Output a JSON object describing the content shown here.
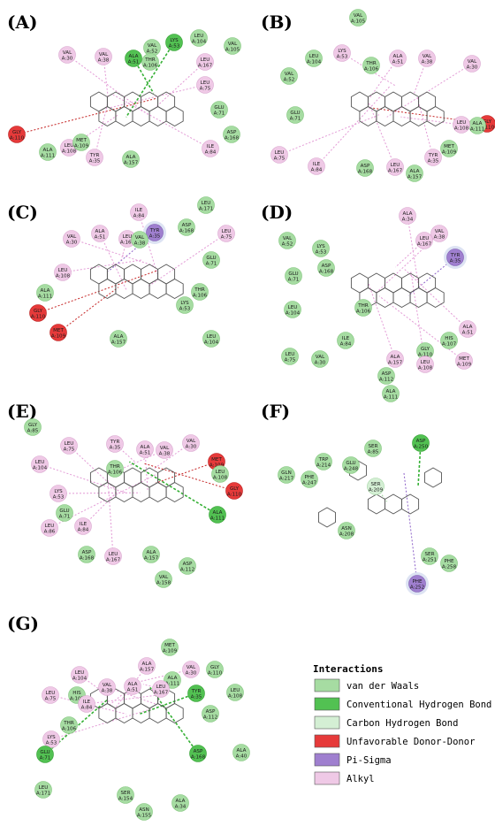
{
  "colors": {
    "vdw": "#a6dca2",
    "hbond": "#52c152",
    "chbond": "#d4efd4",
    "unfavorable": "#e63a3a",
    "pisigma": "#9f7fcf",
    "alkyl": "#efc9e6"
  },
  "panels": [
    {
      "label": "(A)",
      "residues": [
        {
          "name": "VAL",
          "num": "A:52",
          "t": "vdw"
        },
        {
          "name": "LEU",
          "num": "A:104",
          "t": "vdw"
        },
        {
          "name": "VAL",
          "num": "A:105",
          "t": "vdw"
        },
        {
          "name": "VAL",
          "num": "A:30",
          "t": "alkyl"
        },
        {
          "name": "VAL",
          "num": "A:38",
          "t": "alkyl"
        },
        {
          "name": "ALA",
          "num": "A:51",
          "t": "hbond"
        },
        {
          "name": "LYS",
          "num": "A:53",
          "t": "hbond"
        },
        {
          "name": "THR",
          "num": "A:106",
          "t": "vdw"
        },
        {
          "name": "LEU",
          "num": "A:167",
          "t": "alkyl"
        },
        {
          "name": "LEU",
          "num": "A:75",
          "t": "alkyl"
        },
        {
          "name": "GLU",
          "num": "A:71",
          "t": "vdw"
        },
        {
          "name": "ASP",
          "num": "A:168",
          "t": "vdw"
        },
        {
          "name": "ILE",
          "num": "A:84",
          "t": "alkyl"
        },
        {
          "name": "GLY",
          "num": "A:110",
          "t": "unfavorable"
        },
        {
          "name": "LEU",
          "num": "A:108",
          "t": "alkyl"
        },
        {
          "name": "MET",
          "num": "A:109",
          "t": "vdw"
        },
        {
          "name": "ALA",
          "num": "A:111",
          "t": "vdw"
        },
        {
          "name": "TYR",
          "num": "A:35",
          "t": "alkyl"
        },
        {
          "name": "ALA",
          "num": "A:157",
          "t": "vdw"
        }
      ]
    },
    {
      "label": "(B)",
      "residues": [
        {
          "name": "VAL",
          "num": "A:105",
          "t": "vdw"
        },
        {
          "name": "LEU",
          "num": "A:104",
          "t": "vdw"
        },
        {
          "name": "LYS",
          "num": "A:53",
          "t": "alkyl"
        },
        {
          "name": "THR",
          "num": "A:106",
          "t": "vdw"
        },
        {
          "name": "ALA",
          "num": "A:51",
          "t": "alkyl"
        },
        {
          "name": "VAL",
          "num": "A:38",
          "t": "alkyl"
        },
        {
          "name": "VAL",
          "num": "A:30",
          "t": "alkyl"
        },
        {
          "name": "VAL",
          "num": "A:52",
          "t": "vdw"
        },
        {
          "name": "GLU",
          "num": "A:71",
          "t": "vdw"
        },
        {
          "name": "GLY",
          "num": "A:110",
          "t": "unfavorable"
        },
        {
          "name": "ALA",
          "num": "A:111",
          "t": "vdw"
        },
        {
          "name": "LEU",
          "num": "A:108",
          "t": "alkyl"
        },
        {
          "name": "MET",
          "num": "A:109",
          "t": "vdw"
        },
        {
          "name": "TYR",
          "num": "A:35",
          "t": "alkyl"
        },
        {
          "name": "LEU",
          "num": "A:75",
          "t": "alkyl"
        },
        {
          "name": "ILE",
          "num": "A:84",
          "t": "alkyl"
        },
        {
          "name": "ASP",
          "num": "A:168",
          "t": "vdw"
        },
        {
          "name": "LEU",
          "num": "A:167",
          "t": "alkyl"
        },
        {
          "name": "ALA",
          "num": "A:157",
          "t": "vdw"
        }
      ]
    },
    {
      "label": "(C)",
      "residues": [
        {
          "name": "ILE",
          "num": "A:84",
          "t": "alkyl"
        },
        {
          "name": "LEU",
          "num": "A:171",
          "t": "vdw"
        },
        {
          "name": "ASP",
          "num": "A:168",
          "t": "vdw"
        },
        {
          "name": "LEU",
          "num": "A:75",
          "t": "alkyl"
        },
        {
          "name": "TYR",
          "num": "A:35",
          "t": "pisigma"
        },
        {
          "name": "VAL",
          "num": "A:30",
          "t": "alkyl"
        },
        {
          "name": "ALA",
          "num": "A:51",
          "t": "alkyl"
        },
        {
          "name": "LEU",
          "num": "A:167",
          "t": "alkyl"
        },
        {
          "name": "VAL",
          "num": "A:38",
          "t": "vdw"
        },
        {
          "name": "GLU",
          "num": "A:71",
          "t": "vdw"
        },
        {
          "name": "LEU",
          "num": "A:108",
          "t": "alkyl"
        },
        {
          "name": "THR",
          "num": "A:106",
          "t": "vdw"
        },
        {
          "name": "ALA",
          "num": "A:111",
          "t": "vdw"
        },
        {
          "name": "GLY",
          "num": "A:110",
          "t": "unfavorable"
        },
        {
          "name": "MET",
          "num": "A:109",
          "t": "unfavorable"
        },
        {
          "name": "LYS",
          "num": "A:53",
          "t": "vdw"
        },
        {
          "name": "ALA",
          "num": "A:157",
          "t": "vdw"
        },
        {
          "name": "LEU",
          "num": "A:104",
          "t": "vdw"
        }
      ]
    },
    {
      "label": "(D)",
      "residues": [
        {
          "name": "ALA",
          "num": "A:34",
          "t": "alkyl"
        },
        {
          "name": "VAL",
          "num": "A:38",
          "t": "alkyl"
        },
        {
          "name": "LEU",
          "num": "A:167",
          "t": "alkyl"
        },
        {
          "name": "TYR",
          "num": "A:35",
          "t": "pisigma"
        },
        {
          "name": "VAL",
          "num": "A:52",
          "t": "vdw"
        },
        {
          "name": "LYS",
          "num": "A:53",
          "t": "vdw"
        },
        {
          "name": "ASP",
          "num": "A:168",
          "t": "vdw"
        },
        {
          "name": "GLU",
          "num": "A:71",
          "t": "vdw"
        },
        {
          "name": "THR",
          "num": "A:106",
          "t": "vdw"
        },
        {
          "name": "LEU",
          "num": "A:104",
          "t": "vdw"
        },
        {
          "name": "ALA",
          "num": "A:51",
          "t": "alkyl"
        },
        {
          "name": "HIS",
          "num": "A:107",
          "t": "vdw"
        },
        {
          "name": "ILE",
          "num": "A:84",
          "t": "vdw"
        },
        {
          "name": "GLY",
          "num": "A:110",
          "t": "vdw"
        },
        {
          "name": "MET",
          "num": "A:109",
          "t": "alkyl"
        },
        {
          "name": "LEU",
          "num": "A:75",
          "t": "vdw"
        },
        {
          "name": "VAL",
          "num": "A:30",
          "t": "vdw"
        },
        {
          "name": "ALA",
          "num": "A:157",
          "t": "alkyl"
        },
        {
          "name": "LEU",
          "num": "A:108",
          "t": "alkyl"
        },
        {
          "name": "ASP",
          "num": "A:112",
          "t": "vdw"
        },
        {
          "name": "ALA",
          "num": "A:111",
          "t": "vdw"
        }
      ]
    },
    {
      "label": "(E)",
      "residues": [
        {
          "name": "GLY",
          "num": "A:85",
          "t": "vdw"
        },
        {
          "name": "LEU",
          "num": "A:75",
          "t": "alkyl"
        },
        {
          "name": "TYR",
          "num": "A:35",
          "t": "alkyl"
        },
        {
          "name": "ALA",
          "num": "A:51",
          "t": "alkyl"
        },
        {
          "name": "VAL",
          "num": "A:38",
          "t": "alkyl"
        },
        {
          "name": "VAL",
          "num": "A:30",
          "t": "alkyl"
        },
        {
          "name": "LEU",
          "num": "A:104",
          "t": "alkyl"
        },
        {
          "name": "THR",
          "num": "A:106",
          "t": "vdw"
        },
        {
          "name": "MET",
          "num": "A:109",
          "t": "unfavorable"
        },
        {
          "name": "LEU",
          "num": "A:108",
          "t": "vdw"
        },
        {
          "name": "GLY",
          "num": "A:110",
          "t": "unfavorable"
        },
        {
          "name": "LYS",
          "num": "A:53",
          "t": "alkyl"
        },
        {
          "name": "GLU",
          "num": "A:71",
          "t": "vdw"
        },
        {
          "name": "LEU",
          "num": "A:86",
          "t": "alkyl"
        },
        {
          "name": "ILE",
          "num": "A:84",
          "t": "alkyl"
        },
        {
          "name": "ALA",
          "num": "A:111",
          "t": "hbond"
        },
        {
          "name": "ASP",
          "num": "A:168",
          "t": "vdw"
        },
        {
          "name": "LEU",
          "num": "A:167",
          "t": "alkyl"
        },
        {
          "name": "ALA",
          "num": "A:157",
          "t": "vdw"
        },
        {
          "name": "ASP",
          "num": "A:112",
          "t": "vdw"
        },
        {
          "name": "VAL",
          "num": "A:158",
          "t": "vdw"
        }
      ]
    },
    {
      "label": "(F)",
      "residues": [
        {
          "name": "ASP",
          "num": "A:250",
          "t": "hbond"
        },
        {
          "name": "SER",
          "num": "A:85",
          "t": "vdw"
        },
        {
          "name": "TRP",
          "num": "A:214",
          "t": "vdw"
        },
        {
          "name": "GLU",
          "num": "A:248",
          "t": "vdw"
        },
        {
          "name": "GLN",
          "num": "A:217",
          "t": "vdw"
        },
        {
          "name": "PHE",
          "num": "A:247",
          "t": "vdw"
        },
        {
          "name": "SER",
          "num": "A:209",
          "t": "chbond"
        },
        {
          "name": "ASN",
          "num": "A:208",
          "t": "vdw"
        },
        {
          "name": "SER",
          "num": "A:251",
          "t": "vdw"
        },
        {
          "name": "PHE",
          "num": "A:258",
          "t": "vdw"
        },
        {
          "name": "PHE",
          "num": "A:252",
          "t": "pisigma"
        }
      ]
    },
    {
      "label": "(G)",
      "residues": [
        {
          "name": "MET",
          "num": "A:109",
          "t": "vdw"
        },
        {
          "name": "ALA",
          "num": "A:157",
          "t": "alkyl"
        },
        {
          "name": "VAL",
          "num": "A:30",
          "t": "alkyl"
        },
        {
          "name": "GLY",
          "num": "A:110",
          "t": "vdw"
        },
        {
          "name": "LEU",
          "num": "A:104",
          "t": "alkyl"
        },
        {
          "name": "ALA",
          "num": "A:111",
          "t": "vdw"
        },
        {
          "name": "LEU",
          "num": "A:75",
          "t": "alkyl"
        },
        {
          "name": "HIS",
          "num": "A:107",
          "t": "vdw"
        },
        {
          "name": "VAL",
          "num": "A:38",
          "t": "alkyl"
        },
        {
          "name": "ALA",
          "num": "A:51",
          "t": "alkyl"
        },
        {
          "name": "LEU",
          "num": "A:167",
          "t": "alkyl"
        },
        {
          "name": "TYR",
          "num": "A:35",
          "t": "hbond"
        },
        {
          "name": "LEU",
          "num": "A:108",
          "t": "vdw"
        },
        {
          "name": "ILE",
          "num": "A:84",
          "t": "alkyl"
        },
        {
          "name": "ASP",
          "num": "A:112",
          "t": "vdw"
        },
        {
          "name": "THR",
          "num": "A:106",
          "t": "vdw"
        },
        {
          "name": "LYS",
          "num": "A:53",
          "t": "alkyl"
        },
        {
          "name": "GLU",
          "num": "A:71",
          "t": "hbond"
        },
        {
          "name": "ASP",
          "num": "A:168",
          "t": "hbond"
        },
        {
          "name": "ALA",
          "num": "A:40",
          "t": "vdw"
        },
        {
          "name": "LEU",
          "num": "A:171",
          "t": "vdw"
        },
        {
          "name": "SER",
          "num": "A:154",
          "t": "vdw"
        },
        {
          "name": "ALA",
          "num": "A:34",
          "t": "vdw"
        },
        {
          "name": "ASN",
          "num": "A:155",
          "t": "vdw"
        }
      ]
    }
  ],
  "legend": {
    "title": "Interactions",
    "items": [
      {
        "key": "vdw",
        "label": "van der Waals"
      },
      {
        "key": "hbond",
        "label": "Conventional Hydrogen Bond"
      },
      {
        "key": "chbond",
        "label": "Carbon Hydrogen Bond"
      },
      {
        "key": "unfavorable",
        "label": "Unfavorable Donor-Donor"
      },
      {
        "key": "pisigma",
        "label": "Pi-Sigma"
      },
      {
        "key": "alkyl",
        "label": "Alkyl"
      }
    ]
  }
}
